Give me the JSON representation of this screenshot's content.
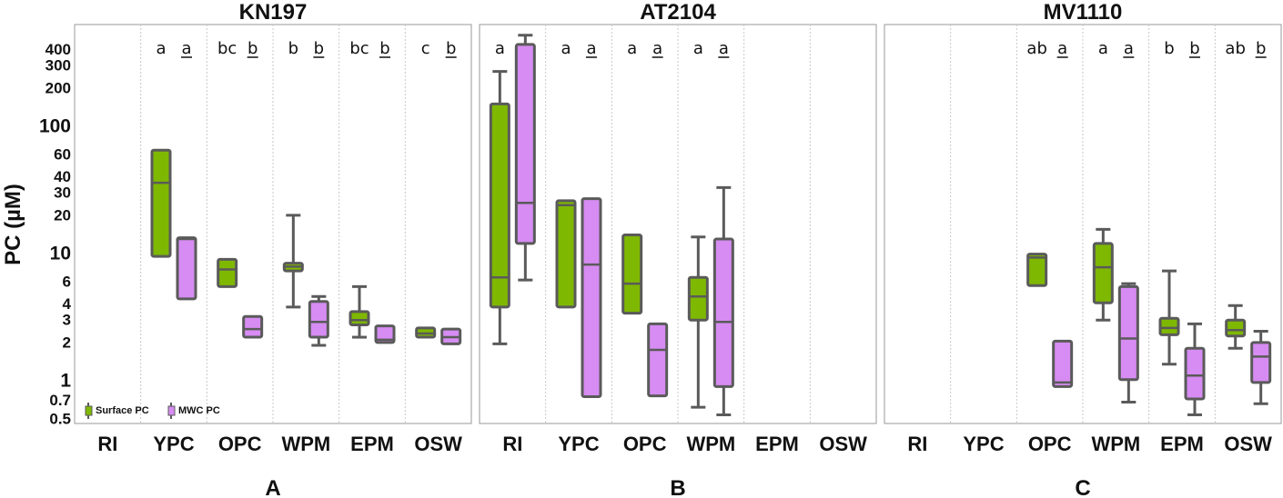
{
  "chart_data": {
    "type": "boxplot",
    "ylabel": "PC (µM)",
    "yscale": "log",
    "ylim": [
      0.45,
      500
    ],
    "yticks": [
      {
        "value": 0.5,
        "label": "0.5",
        "major": false
      },
      {
        "value": 0.7,
        "label": "0.7",
        "major": false
      },
      {
        "value": 1,
        "label": "1",
        "major": true
      },
      {
        "value": 2,
        "label": "2",
        "major": false
      },
      {
        "value": 3,
        "label": "3",
        "major": false
      },
      {
        "value": 4,
        "label": "4",
        "major": false
      },
      {
        "value": 6,
        "label": "6",
        "major": false
      },
      {
        "value": 10,
        "label": "10",
        "major": true
      },
      {
        "value": 20,
        "label": "20",
        "major": false
      },
      {
        "value": 30,
        "label": "30",
        "major": false
      },
      {
        "value": 40,
        "label": "40",
        "major": false
      },
      {
        "value": 60,
        "label": "60",
        "major": false
      },
      {
        "value": 100,
        "label": "100",
        "major": true
      },
      {
        "value": 200,
        "label": "200",
        "major": false
      },
      {
        "value": 300,
        "label": "300",
        "major": false
      },
      {
        "value": 400,
        "label": "400",
        "major": false
      }
    ],
    "categories": [
      "RI",
      "YPC",
      "OPC",
      "WPM",
      "EPM",
      "OSW"
    ],
    "series": [
      {
        "name": "Surface PC",
        "color": "#7fb800"
      },
      {
        "name": "MWC PC",
        "color": "#d68cf2"
      }
    ],
    "legend": {
      "position": "bottom-left",
      "entries": [
        "Surface PC",
        "MWC PC"
      ]
    },
    "panels": [
      {
        "title": "KN197",
        "letter": "A",
        "groups": [
          {
            "category": "RI",
            "surface": null,
            "mwc": null,
            "sig_surface": "",
            "sig_mwc": ""
          },
          {
            "category": "YPC",
            "sig_surface": "a",
            "sig_mwc": "a",
            "surface": {
              "min": 9.5,
              "q1": 9.5,
              "median": 36,
              "q3": 65,
              "max": 65
            },
            "mwc": {
              "min": 4.4,
              "q1": 4.4,
              "median": 13,
              "q3": 13.3,
              "max": 13.3
            }
          },
          {
            "category": "OPC",
            "sig_surface": "bc",
            "sig_mwc": "b",
            "surface": {
              "min": 5.5,
              "q1": 5.5,
              "median": 7.5,
              "q3": 9,
              "max": 9
            },
            "mwc": {
              "min": 2.2,
              "q1": 2.2,
              "median": 2.55,
              "q3": 3.2,
              "max": 3.2
            }
          },
          {
            "category": "WPM",
            "sig_surface": "b",
            "sig_mwc": "b",
            "surface": {
              "min": 3.8,
              "q1": 7.3,
              "median": 7.9,
              "q3": 8.4,
              "max": 20
            },
            "mwc": {
              "min": 1.9,
              "q1": 2.2,
              "median": 2.9,
              "q3": 4.2,
              "max": 4.6
            }
          },
          {
            "category": "EPM",
            "sig_surface": "bc",
            "sig_mwc": "b",
            "surface": {
              "min": 2.2,
              "q1": 2.75,
              "median": 3.0,
              "q3": 3.5,
              "max": 5.5
            },
            "mwc": {
              "min": 2.0,
              "q1": 2.0,
              "median": 2.1,
              "q3": 2.7,
              "max": 2.7
            }
          },
          {
            "category": "OSW",
            "sig_surface": "c",
            "sig_mwc": "b",
            "surface": {
              "min": 2.2,
              "q1": 2.2,
              "median": 2.35,
              "q3": 2.6,
              "max": 2.6
            },
            "mwc": {
              "min": 1.95,
              "q1": 1.95,
              "median": 2.2,
              "q3": 2.55,
              "max": 2.55
            }
          }
        ]
      },
      {
        "title": "AT2104",
        "letter": "B",
        "groups": [
          {
            "category": "RI",
            "sig_surface": "a",
            "sig_mwc": "a",
            "surface": {
              "min": 1.95,
              "q1": 3.8,
              "median": 6.5,
              "q3": 150,
              "max": 270
            },
            "mwc": {
              "min": 6.2,
              "q1": 12,
              "median": 25,
              "q3": 440,
              "max": 520
            }
          },
          {
            "category": "YPC",
            "sig_surface": "a",
            "sig_mwc": "a",
            "surface": {
              "min": 3.8,
              "q1": 3.8,
              "median": 24,
              "q3": 26,
              "max": 26
            },
            "mwc": {
              "min": 0.75,
              "q1": 0.75,
              "median": 8.2,
              "q3": 27,
              "max": 27
            }
          },
          {
            "category": "OPC",
            "sig_surface": "a",
            "sig_mwc": "a",
            "surface": {
              "min": 3.4,
              "q1": 3.4,
              "median": 5.8,
              "q3": 14,
              "max": 14
            },
            "mwc": {
              "min": 0.76,
              "q1": 0.76,
              "median": 1.75,
              "q3": 2.8,
              "max": 2.8
            }
          },
          {
            "category": "WPM",
            "sig_surface": "a",
            "sig_mwc": "a",
            "surface": {
              "min": 0.62,
              "q1": 3.0,
              "median": 4.6,
              "q3": 6.5,
              "max": 13.5
            },
            "mwc": {
              "min": 0.54,
              "q1": 0.9,
              "median": 2.9,
              "q3": 13,
              "max": 33
            }
          },
          {
            "category": "EPM",
            "surface": null,
            "mwc": null,
            "sig_surface": "",
            "sig_mwc": ""
          },
          {
            "category": "OSW",
            "surface": null,
            "mwc": null,
            "sig_surface": "",
            "sig_mwc": ""
          }
        ]
      },
      {
        "title": "MV1110",
        "letter": "C",
        "groups": [
          {
            "category": "RI",
            "surface": null,
            "mwc": null,
            "sig_surface": "",
            "sig_mwc": ""
          },
          {
            "category": "YPC",
            "surface": null,
            "mwc": null,
            "sig_surface": "",
            "sig_mwc": ""
          },
          {
            "category": "OPC",
            "sig_surface": "ab",
            "sig_mwc": "a",
            "surface": {
              "min": 5.6,
              "q1": 5.6,
              "median": 9.3,
              "q3": 9.9,
              "max": 9.9
            },
            "mwc": {
              "min": 0.9,
              "q1": 0.9,
              "median": 0.97,
              "q3": 2.05,
              "max": 2.05
            }
          },
          {
            "category": "WPM",
            "sig_surface": "a",
            "sig_mwc": "a",
            "surface": {
              "min": 3.0,
              "q1": 4.1,
              "median": 7.8,
              "q3": 12,
              "max": 15.5
            },
            "mwc": {
              "min": 0.68,
              "q1": 1.02,
              "median": 2.15,
              "q3": 5.5,
              "max": 5.8
            }
          },
          {
            "category": "EPM",
            "sig_surface": "b",
            "sig_mwc": "b",
            "surface": {
              "min": 1.35,
              "q1": 2.3,
              "median": 2.6,
              "q3": 3.1,
              "max": 7.3
            },
            "mwc": {
              "min": 0.54,
              "q1": 0.72,
              "median": 1.1,
              "q3": 1.8,
              "max": 2.8
            }
          },
          {
            "category": "OSW",
            "sig_surface": "ab",
            "sig_mwc": "b",
            "surface": {
              "min": 1.8,
              "q1": 2.25,
              "median": 2.5,
              "q3": 3.0,
              "max": 3.9
            },
            "mwc": {
              "min": 0.66,
              "q1": 0.97,
              "median": 1.55,
              "q3": 2.0,
              "max": 2.45
            }
          }
        ]
      }
    ]
  }
}
